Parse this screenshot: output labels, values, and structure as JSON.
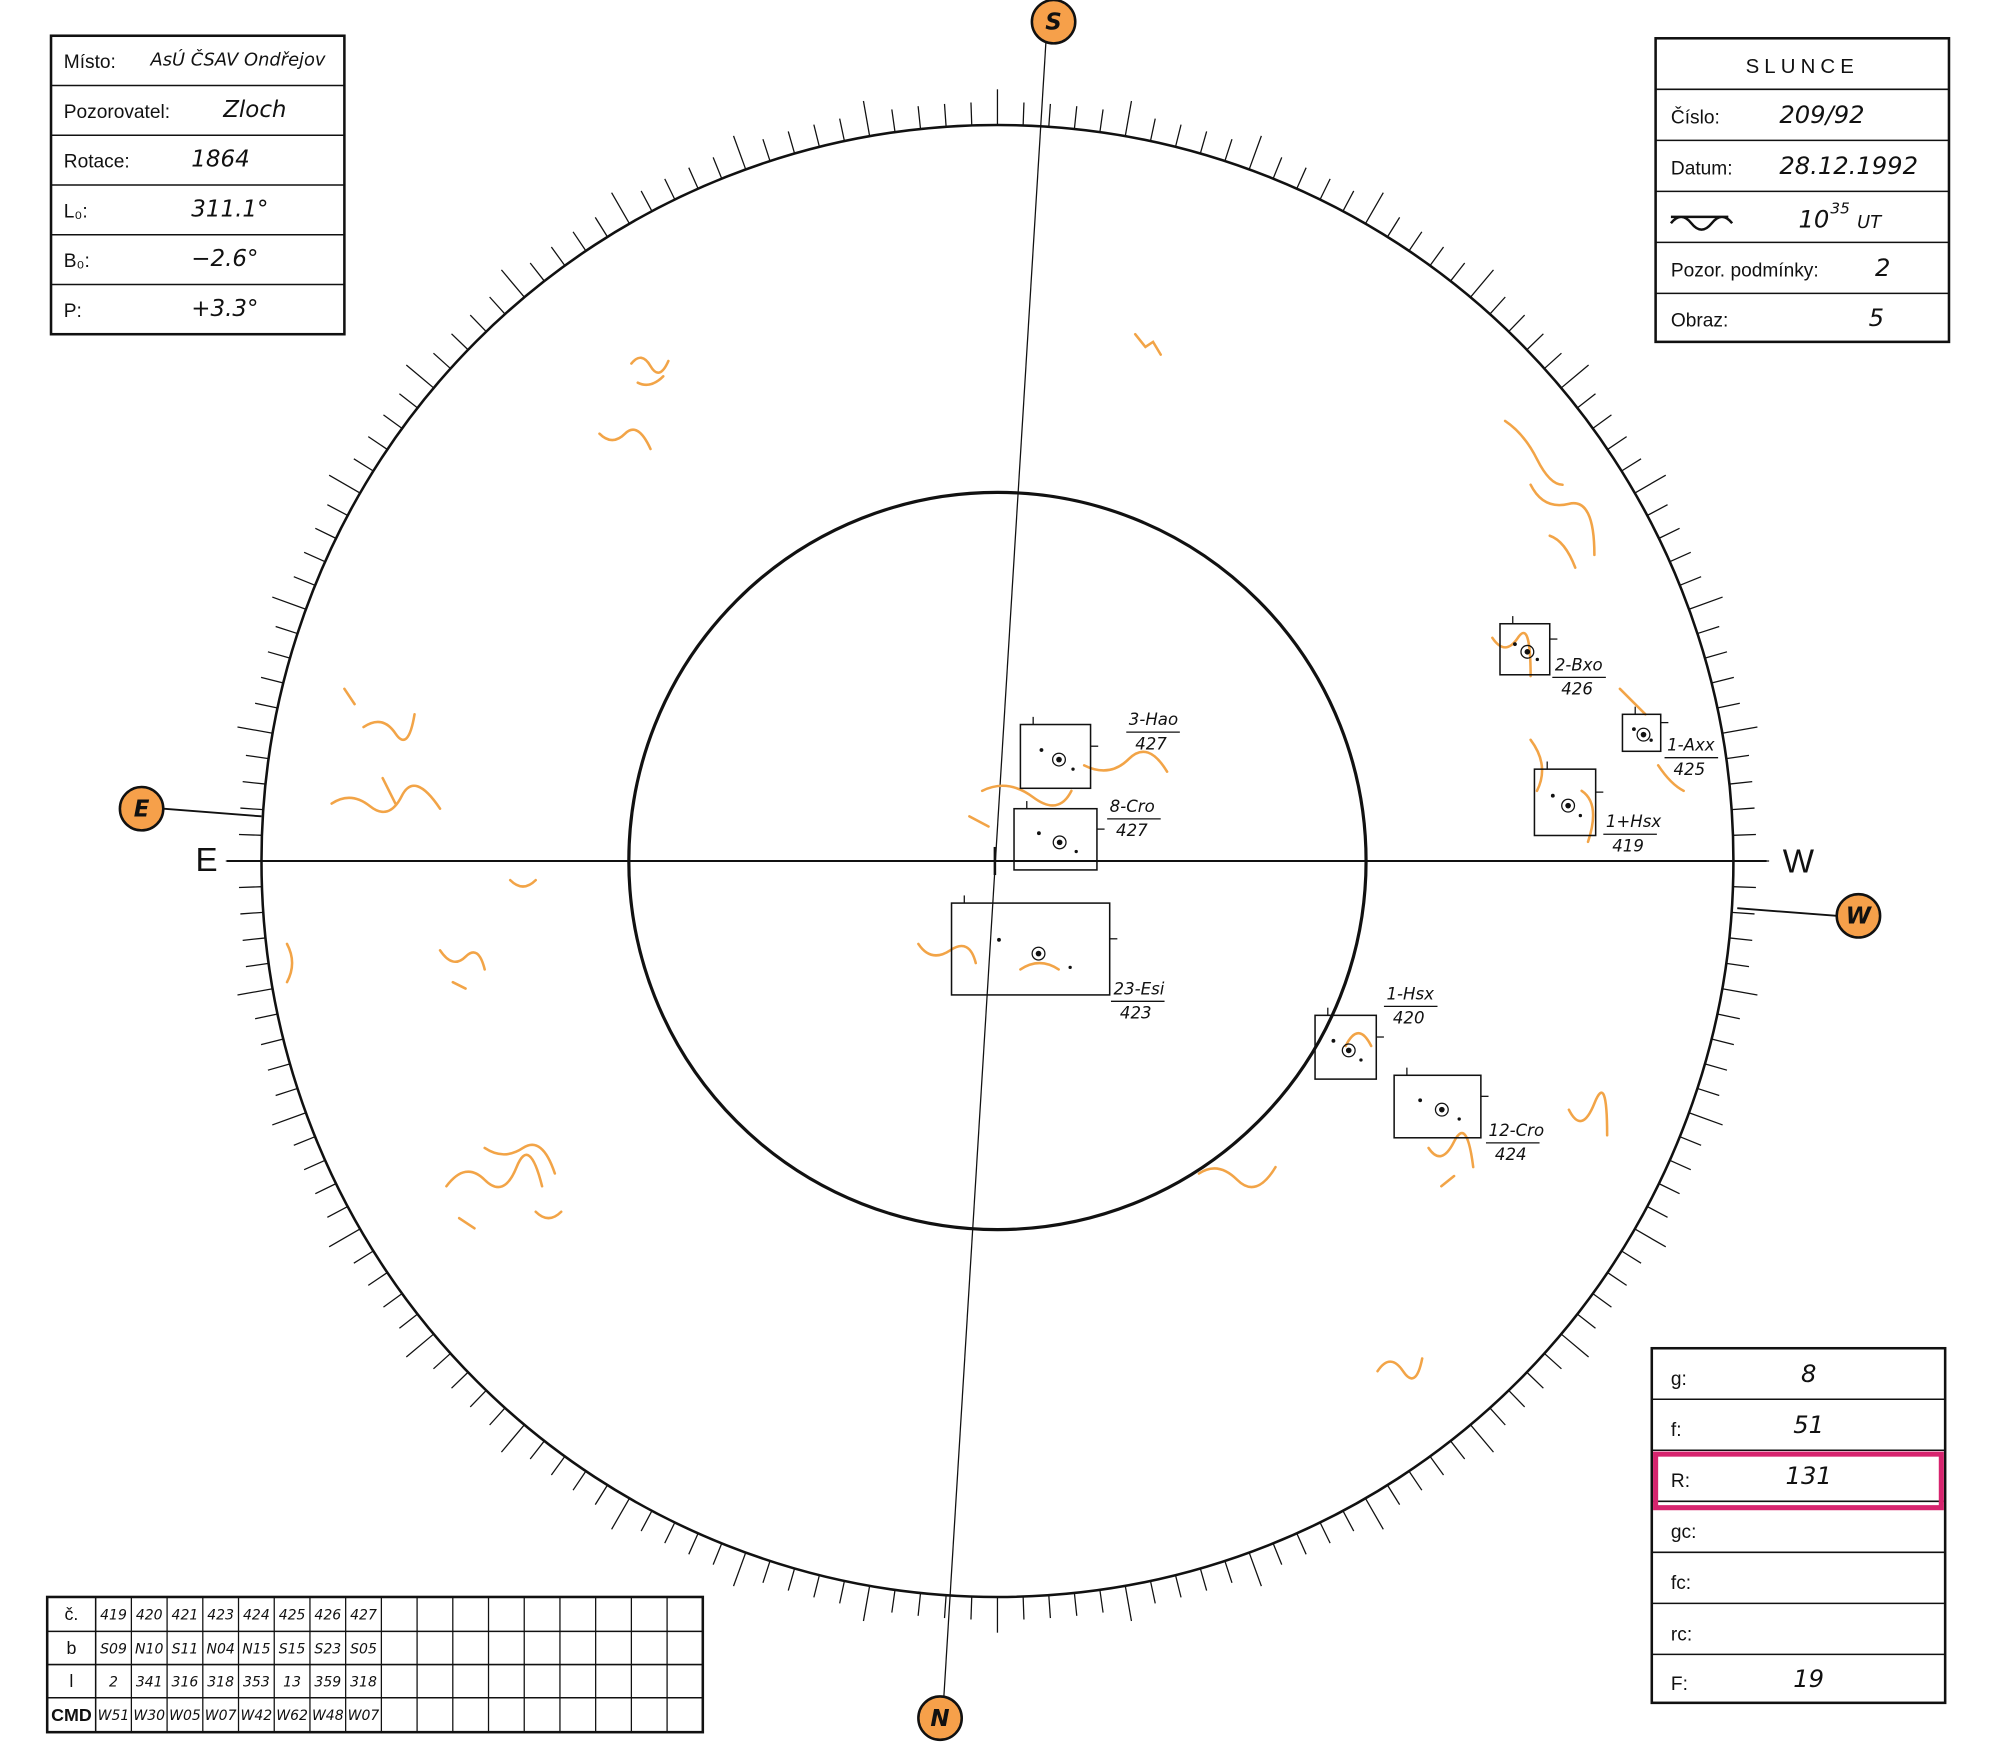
{
  "observation": {
    "rows": [
      {
        "label": "Místo:",
        "value": "AsÚ ČSAV Ondřejov"
      },
      {
        "label": "Pozorovatel:",
        "value": "Zloch"
      },
      {
        "label": "Rotace:",
        "value": "1864"
      },
      {
        "label": "L₀:",
        "value": "311.1°"
      },
      {
        "label": "B₀:",
        "value": "−2.6°"
      },
      {
        "label": "P:",
        "value": "+3.3°"
      }
    ]
  },
  "sun": {
    "title": "SLUNCE",
    "rows": [
      {
        "label": "Číslo:",
        "value": "209/92"
      },
      {
        "label": "Datum:",
        "value": "28.12.1992"
      },
      {
        "value": "10",
        "superscript": "35",
        "suffix": "UT"
      },
      {
        "label": "Pozor. podmínky:",
        "value": "2"
      },
      {
        "label": "Obraz:",
        "value": "5"
      }
    ]
  },
  "indices": {
    "rows": [
      {
        "label": "g:",
        "value": "8"
      },
      {
        "label": "f:",
        "value": "51"
      },
      {
        "label": "R:",
        "value": "131"
      },
      {
        "label": "gc:"
      },
      {
        "label": "fc:"
      },
      {
        "label": "rc:"
      },
      {
        "label": "F:",
        "value": "19"
      }
    ]
  },
  "table": {
    "rows": [
      {
        "label": "č.",
        "cells": [
          "419",
          "420",
          "421",
          "423",
          "424",
          "425",
          "426",
          "427"
        ]
      },
      {
        "label": "b",
        "cells": [
          "S09",
          "N10",
          "S11",
          "N04",
          "N15",
          "S15",
          "S23",
          "S05"
        ]
      },
      {
        "label": "l",
        "cells": [
          "2",
          "341",
          "316",
          "318",
          "353",
          "13",
          "359",
          "318"
        ]
      },
      {
        "label": "CMD",
        "cells": [
          "W51",
          "W30",
          "W05",
          "W07",
          "W42",
          "W62",
          "W48",
          "W07"
        ]
      }
    ]
  },
  "directions": {
    "south": "S",
    "east": "E",
    "west": "W",
    "north": "N",
    "east_axis": "E",
    "west_axis": "W"
  },
  "groups": [
    {
      "name": "3-Hao",
      "number": "427"
    },
    {
      "name": "8-Cro",
      "number": "427"
    },
    {
      "name": "23-Esi",
      "number": "423"
    },
    {
      "name": "1-Hsx",
      "number": "420"
    },
    {
      "name": "12-Cro",
      "number": "424"
    },
    {
      "name": "2-Bxo",
      "number": "426"
    },
    {
      "name": "1-Axx",
      "number": "425"
    },
    {
      "name": "1+Hsx",
      "number": "419"
    }
  ]
}
